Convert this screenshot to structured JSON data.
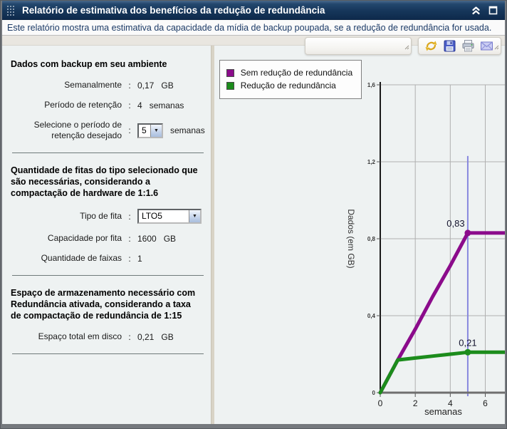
{
  "ui": {
    "colon": ":"
  },
  "window": {
    "title": "Relatório de estimativa dos benefícios da redução de redundância",
    "subtitle": "Este relatório mostra uma estimativa da capacidade da mídia de backup poupada, se a redução de redundância for usada.",
    "control_icons": [
      "collapse",
      "maximize"
    ]
  },
  "toolbar": {
    "icons": [
      "refresh",
      "save",
      "print",
      "email"
    ]
  },
  "panel": {
    "backup_env": {
      "heading": "Dados com backup em seu ambiente",
      "weekly": {
        "label": "Semanalmente",
        "value": "0,17",
        "unit": "GB"
      },
      "retention": {
        "label": "Período de retenção",
        "value": "4",
        "unit": "semanas"
      },
      "select_retention": {
        "label": "Selecione o período de retenção desejado",
        "value": "5",
        "unit": "semanas"
      }
    },
    "tapes": {
      "heading": "Quantidade de fitas do tipo selecionado que são necessárias, considerando a compactação de hardware de 1:1.6",
      "tape_type": {
        "label": "Tipo de fita",
        "value": "LTO5"
      },
      "capacity": {
        "label": "Capacidade por fita",
        "value": "1600",
        "unit": "GB"
      },
      "tracks": {
        "label": "Quantidade de faixas",
        "value": "1"
      }
    },
    "dedup_space": {
      "heading": "Espaço de armazenamento necessário com Redundância ativada, considerando a taxa de compactação de redundância de 1:15",
      "disk": {
        "label": "Espaço total em disco",
        "value": "0,21",
        "unit": "GB"
      }
    }
  },
  "chart_data": {
    "type": "line",
    "x": [
      0,
      1,
      2,
      3,
      4,
      5,
      6,
      7.2
    ],
    "series": [
      {
        "name": "Sem redução de redundância",
        "color": "#8B0B8B",
        "values": [
          0,
          0.17,
          0.33,
          0.5,
          0.66,
          0.83,
          0.83,
          0.83
        ],
        "marker": {
          "x": 5,
          "y": 0.83,
          "label": "0,83",
          "label_dx": -17
        }
      },
      {
        "name": "Redução de redundância",
        "color": "#1C8C1C",
        "values": [
          0,
          0.17,
          0.18,
          0.19,
          0.2,
          0.21,
          0.21,
          0.21
        ],
        "marker": {
          "x": 5,
          "y": 0.21,
          "label": "0,21",
          "label_dx": 0
        }
      }
    ],
    "reference_line": {
      "x": 5,
      "y0": 0,
      "y1": 1.23,
      "color": "#8787DE"
    },
    "xlabel": "semanas",
    "ylabel": "Dados (em GB)",
    "xlim": [
      0,
      7.2
    ],
    "ylim": [
      0,
      1.6
    ],
    "xticks": [
      0,
      2,
      4,
      6
    ],
    "xtick_labels": [
      "0",
      "2",
      "4",
      "6"
    ],
    "yticks": [
      0,
      0.4,
      0.8,
      1.2,
      1.6
    ],
    "ytick_labels": [
      "0",
      "0,4",
      "0,8",
      "1,2",
      "1,6"
    ],
    "grid": true,
    "legend_position": "top-left"
  }
}
